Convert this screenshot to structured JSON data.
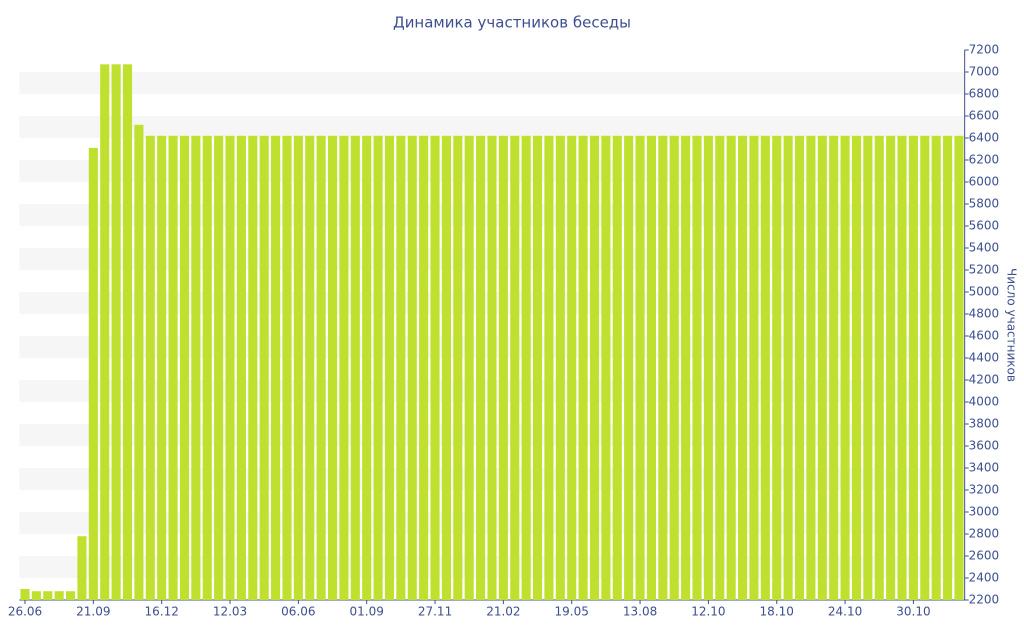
{
  "chart_data": {
    "type": "bar",
    "title": "Динамика участников беседы",
    "y_label": "Число участников",
    "categories": [
      "26.06",
      null,
      null,
      null,
      null,
      null,
      "21.09",
      null,
      null,
      null,
      null,
      null,
      "16.12",
      null,
      null,
      null,
      null,
      null,
      "12.03",
      null,
      null,
      null,
      null,
      null,
      "06.06",
      null,
      null,
      null,
      null,
      null,
      "01.09",
      null,
      null,
      null,
      null,
      null,
      "27.11",
      null,
      null,
      null,
      null,
      null,
      "21.02",
      null,
      null,
      null,
      null,
      null,
      "19.05",
      null,
      null,
      null,
      null,
      null,
      "13.08",
      null,
      null,
      null,
      null,
      null,
      "12.10",
      null,
      null,
      null,
      null,
      null,
      "18.10",
      null,
      null,
      null,
      null,
      null,
      "24.10",
      null,
      null,
      null,
      null,
      null,
      "30.10",
      null,
      null,
      null,
      null
    ],
    "values": [
      2300,
      2280,
      2280,
      2280,
      2280,
      2780,
      6310,
      7070,
      7070,
      7070,
      6520,
      6420,
      6420,
      6420,
      6420,
      6420,
      6420,
      6420,
      6420,
      6420,
      6420,
      6420,
      6420,
      6420,
      6420,
      6420,
      6420,
      6420,
      6420,
      6420,
      6420,
      6420,
      6420,
      6420,
      6420,
      6420,
      6420,
      6420,
      6420,
      6420,
      6420,
      6420,
      6420,
      6420,
      6420,
      6420,
      6420,
      6420,
      6420,
      6420,
      6420,
      6420,
      6420,
      6420,
      6420,
      6420,
      6420,
      6420,
      6420,
      6420,
      6420,
      6420,
      6420,
      6420,
      6420,
      6420,
      6420,
      6420,
      6420,
      6420,
      6420,
      6420,
      6420,
      6420,
      6420,
      6420,
      6420,
      6420,
      6420,
      6420,
      6420,
      6420,
      6420
    ],
    "color": "#c0e030",
    "ylim": [
      2200,
      7200
    ],
    "yticks": [
      2200,
      2400,
      2600,
      2800,
      3000,
      3200,
      3400,
      3600,
      3800,
      4000,
      4200,
      4400,
      4600,
      4800,
      5000,
      5200,
      5400,
      5600,
      5800,
      6000,
      6200,
      6400,
      6600,
      6800,
      7000,
      7200
    ],
    "grid": "bands",
    "y_axis_side": "right"
  }
}
